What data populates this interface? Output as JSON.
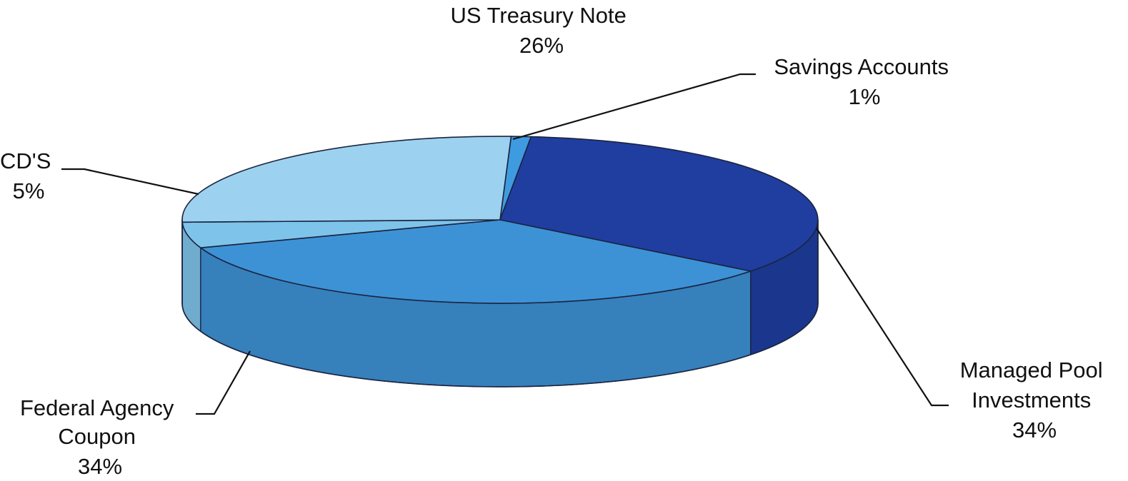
{
  "chart_data": {
    "type": "pie",
    "style": "3d",
    "slices": [
      {
        "name": "Savings Accounts",
        "label_lines": [
          "Savings Accounts",
          "1%"
        ],
        "value": 1,
        "color": "#3f9be0"
      },
      {
        "name": "Managed Pool Investments",
        "label_lines": [
          "Managed Pool",
          "Investments",
          "34%"
        ],
        "value": 34,
        "color": "#1f3ea0"
      },
      {
        "name": "Federal Agency Coupon",
        "label_lines": [
          "Federal Agency",
          "Coupon",
          "34%"
        ],
        "value": 34,
        "color": "#3d92d6"
      },
      {
        "name": "CD'S",
        "label_lines": [
          "CD'S",
          "5%"
        ],
        "value": 5,
        "color": "#7ec3ea"
      },
      {
        "name": "US Treasury Note",
        "label_lines": [
          "US Treasury Note",
          "26%"
        ],
        "value": 26,
        "color": "#9cd2ef"
      }
    ]
  }
}
